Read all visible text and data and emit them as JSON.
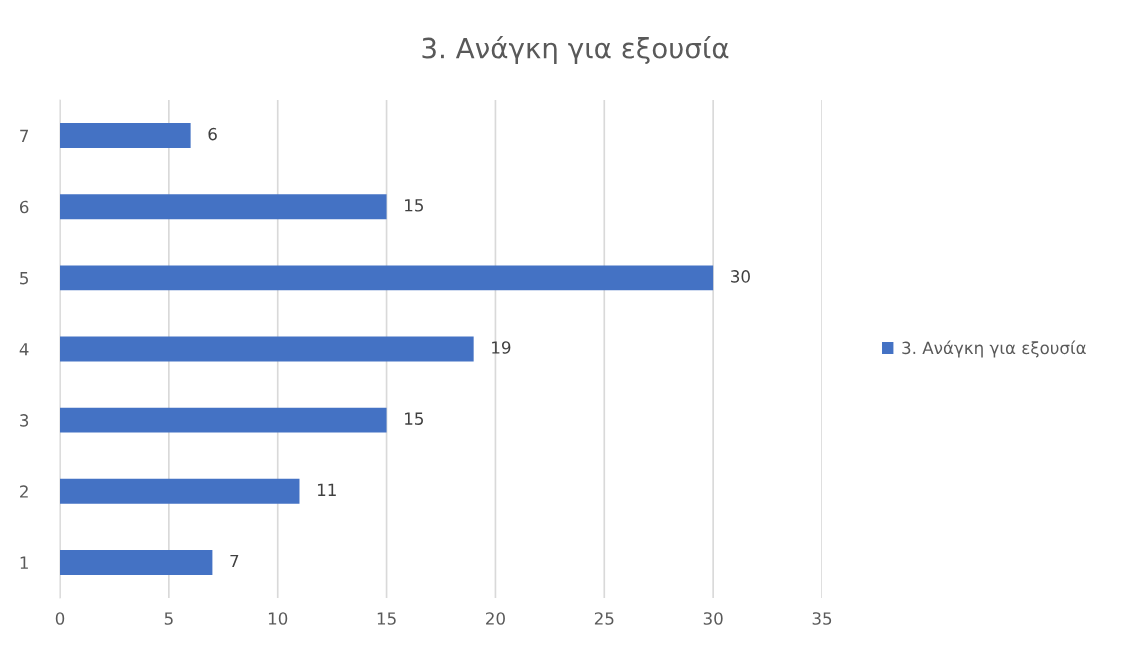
{
  "chart_data": {
    "type": "bar",
    "orientation": "horizontal",
    "title": "3. Ανάγκη για εξουσία",
    "categories": [
      "7",
      "6",
      "5",
      "4",
      "3",
      "2",
      "1"
    ],
    "series": [
      {
        "name": "3. Ανάγκη για εξουσία",
        "color": "#4472c4",
        "values": [
          6,
          15,
          30,
          19,
          15,
          11,
          7
        ]
      }
    ],
    "xlim": [
      0,
      35
    ],
    "xticks": [
      0,
      5,
      10,
      15,
      20,
      25,
      30,
      35
    ],
    "grid": "x",
    "legend": "right",
    "data_labels": true
  }
}
